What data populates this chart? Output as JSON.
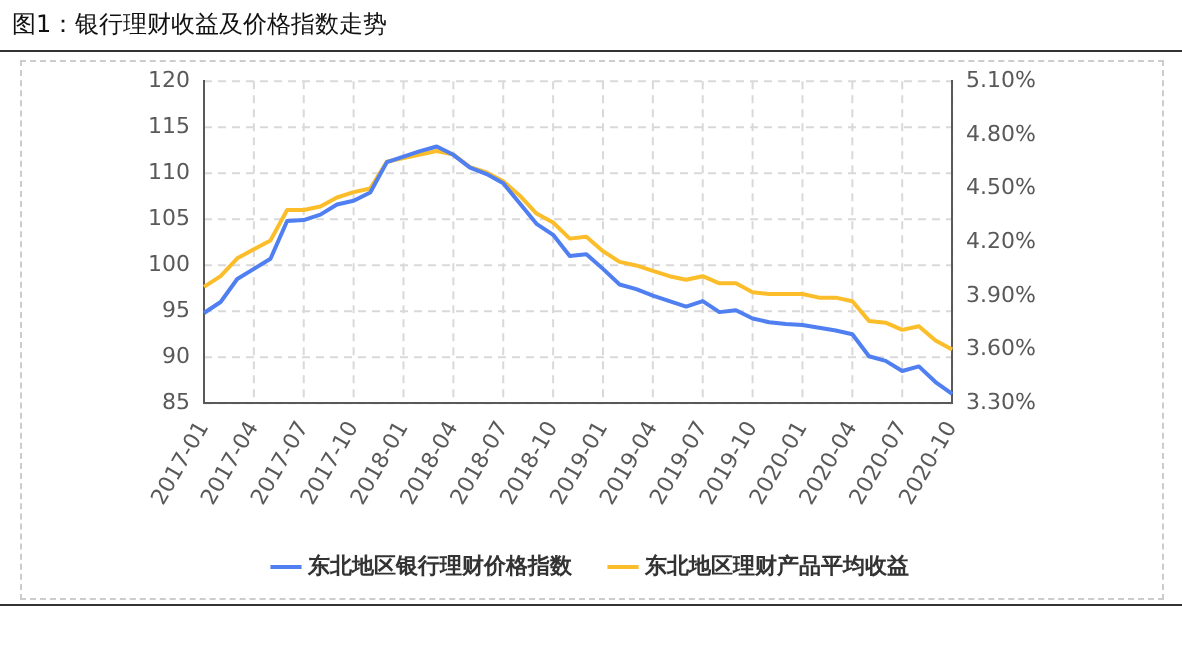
{
  "chart_data": {
    "type": "line",
    "title": "图1：银行理财收益及价格指数走势",
    "categories": [
      "2017-01",
      null,
      null,
      "2017-04",
      null,
      null,
      "2017-07",
      null,
      null,
      "2017-10",
      null,
      null,
      "2018-01",
      null,
      null,
      "2018-04",
      null,
      null,
      "2018-07",
      null,
      null,
      "2018-10",
      null,
      null,
      "2019-01",
      null,
      null,
      "2019-04",
      null,
      null,
      "2019-07",
      null,
      null,
      "2019-10",
      null,
      null,
      "2020-01",
      null,
      null,
      "2020-04",
      null,
      null,
      "2020-07",
      null,
      null,
      "2020-10"
    ],
    "series": [
      {
        "name": "东北地区银行理财价格指数",
        "color": "#4f7ff0",
        "values": [
          94.8,
          96,
          98.5,
          99.6,
          100.7,
          104.8,
          104.9,
          105.5,
          106.6,
          107.0,
          107.9,
          111.2,
          111.8,
          112.4,
          112.9,
          112.0,
          110.6,
          109.9,
          108.9,
          106.7,
          104.5,
          103.3,
          101.0,
          101.2,
          99.6,
          97.9,
          97.4,
          96.7,
          96.1,
          95.5,
          96.1,
          94.9,
          95.1,
          94.2,
          93.8,
          93.6,
          93.5,
          93.2,
          92.9,
          92.5,
          90.1,
          89.6,
          88.5,
          89.0,
          87.3,
          86.0
        ]
      },
      {
        "name": "东北地区理财产品平均收益",
        "color": "#fbbd2a",
        "axis": "y2",
        "values": [
          3.95,
          4.01,
          4.11,
          4.16,
          4.21,
          4.38,
          4.38,
          4.4,
          4.45,
          4.48,
          4.5,
          4.65,
          4.67,
          4.69,
          4.71,
          4.69,
          4.62,
          4.59,
          4.54,
          4.46,
          4.36,
          4.31,
          4.22,
          4.23,
          4.15,
          4.09,
          4.07,
          4.04,
          4.01,
          3.99,
          4.01,
          3.97,
          3.97,
          3.92,
          3.91,
          3.91,
          3.91,
          3.89,
          3.89,
          3.87,
          3.76,
          3.75,
          3.71,
          3.73,
          3.65,
          3.6
        ]
      }
    ],
    "ylim": [
      85,
      120
    ],
    "yticks": [
      85,
      90,
      95,
      100,
      105,
      110,
      115,
      120
    ],
    "y2lim": [
      3.3,
      5.1
    ],
    "y2ticks": [
      {
        "value": 3.3,
        "label": "3.30%"
      },
      {
        "value": 3.6,
        "label": "3.60%"
      },
      {
        "value": 3.9,
        "label": "3.90%"
      },
      {
        "value": 4.2,
        "label": "4.20%"
      },
      {
        "value": 4.5,
        "label": "4.50%"
      },
      {
        "value": 4.8,
        "label": "4.80%"
      },
      {
        "value": 5.1,
        "label": "5.10%"
      }
    ],
    "grid": true,
    "legend": "bottom",
    "marker": "none",
    "line_style": "solid"
  }
}
